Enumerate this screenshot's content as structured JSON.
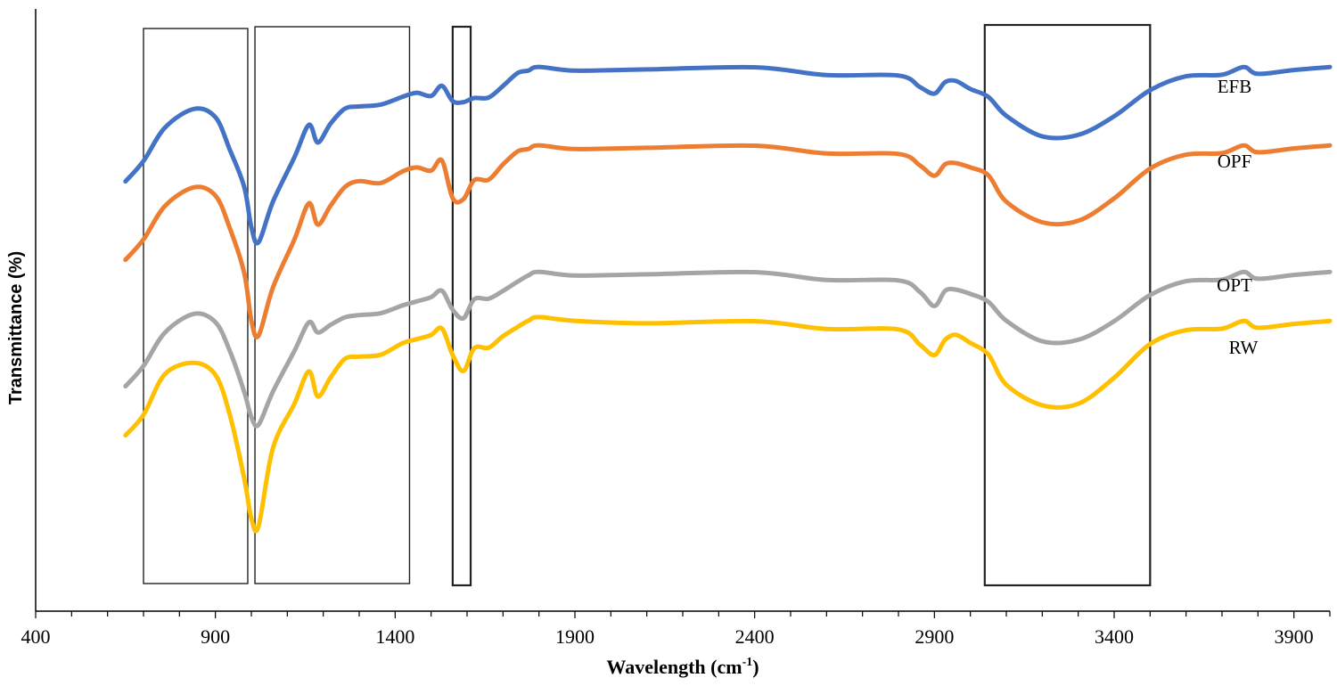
{
  "chart_data": {
    "type": "line",
    "title": "",
    "xlabel": "Wavelength (cm",
    "xlabel_sup": "-1",
    "xlabel_close": ")",
    "ylabel": "Transmittance (%)",
    "xlim": [
      400,
      4000
    ],
    "x_ticks": [
      400,
      900,
      1400,
      1900,
      2400,
      2900,
      3400,
      3900
    ],
    "x_tick_labels": [
      "400",
      "900",
      "1400",
      "1900",
      "2400",
      "2900",
      "3400",
      "3900"
    ],
    "y_ticks_shown": false,
    "grid": false,
    "legend": "inline labels at right",
    "highlight_ranges": [
      [
        700,
        990
      ],
      [
        1010,
        1440
      ],
      [
        1560,
        1610
      ],
      [
        3040,
        3500
      ]
    ],
    "series": [
      {
        "name": "EFB",
        "color": "#4472C4",
        "x": [
          650,
          700,
          760,
          840,
          900,
          940,
          980,
          1000,
          1020,
          1060,
          1120,
          1160,
          1185,
          1220,
          1260,
          1300,
          1360,
          1420,
          1460,
          1500,
          1530,
          1560,
          1590,
          1620,
          1660,
          1700,
          1740,
          1770,
          1800,
          1900,
          2100,
          2400,
          2600,
          2800,
          2860,
          2900,
          2930,
          2960,
          3000,
          3050,
          3100,
          3200,
          3300,
          3400,
          3500,
          3600,
          3700,
          3760,
          3800,
          3900,
          4000
        ],
        "y": [
          -18,
          -13,
          -3,
          1,
          -1,
          -9,
          -20,
          -30,
          -34,
          -24,
          -11,
          -3,
          -8,
          -2,
          1,
          2,
          3,
          4,
          6,
          5,
          7,
          4,
          3,
          4,
          5,
          7,
          11,
          12,
          12,
          12,
          12,
          12,
          11,
          10,
          7,
          6,
          8,
          9,
          7,
          4,
          0,
          -6,
          -6,
          0,
          6,
          10,
          11,
          12,
          11,
          12,
          12
        ]
      },
      {
        "name": "OPF",
        "color": "#ED7D31",
        "x": [
          650,
          700,
          760,
          840,
          900,
          940,
          980,
          1000,
          1020,
          1060,
          1120,
          1160,
          1185,
          1220,
          1260,
          1300,
          1360,
          1420,
          1460,
          1500,
          1530,
          1560,
          1590,
          1620,
          1660,
          1700,
          1740,
          1770,
          1800,
          1900,
          2100,
          2400,
          2600,
          2800,
          2860,
          2900,
          2930,
          2960,
          3000,
          3050,
          3100,
          3200,
          3300,
          3400,
          3500,
          3600,
          3700,
          3760,
          3800,
          3900,
          4000
        ],
        "y": [
          -18,
          -13,
          -3,
          1,
          -1,
          -9,
          -22,
          -34,
          -38,
          -26,
          -12,
          -3,
          -9,
          -3,
          1,
          3,
          3,
          5,
          7,
          6,
          8,
          -1,
          -2,
          3,
          4,
          7,
          11,
          12,
          12,
          12,
          12,
          12,
          11,
          10,
          7,
          5,
          7,
          8,
          7,
          4,
          -2,
          -8,
          -8,
          -1,
          6,
          10,
          11,
          12,
          11,
          12,
          12
        ]
      },
      {
        "name": "OPT",
        "color": "#A5A5A5",
        "x": [
          650,
          700,
          760,
          840,
          900,
          940,
          980,
          1000,
          1020,
          1060,
          1120,
          1160,
          1185,
          1220,
          1260,
          1300,
          1360,
          1420,
          1460,
          1500,
          1530,
          1560,
          1590,
          1620,
          1660,
          1700,
          1740,
          1770,
          1800,
          1900,
          2100,
          2400,
          2600,
          2800,
          2860,
          2900,
          2930,
          2960,
          3000,
          3050,
          3100,
          3200,
          3300,
          3400,
          3500,
          3600,
          3700,
          3760,
          3800,
          3900,
          4000
        ],
        "y": [
          -18,
          -13,
          -3,
          1,
          -1,
          -8,
          -20,
          -26,
          -28,
          -20,
          -8,
          -1,
          -4,
          -1,
          0,
          1,
          2,
          3,
          5,
          6,
          7,
          3,
          0,
          5,
          6,
          7,
          10,
          12,
          12,
          12,
          12,
          12,
          11,
          10,
          7,
          4,
          7,
          8,
          7,
          4,
          0,
          -6,
          -6,
          0,
          6,
          10,
          11,
          12,
          11,
          12,
          12
        ]
      },
      {
        "name": "RW",
        "color": "#FFC000",
        "x": [
          650,
          700,
          760,
          840,
          900,
          940,
          980,
          1000,
          1020,
          1060,
          1120,
          1160,
          1185,
          1220,
          1260,
          1300,
          1360,
          1420,
          1460,
          1500,
          1530,
          1560,
          1590,
          1620,
          1660,
          1700,
          1740,
          1770,
          1800,
          1900,
          2100,
          2400,
          2600,
          2800,
          2860,
          2900,
          2930,
          2960,
          3000,
          3050,
          3100,
          3200,
          3300,
          3400,
          3500,
          3600,
          3700,
          3760,
          3800,
          3900,
          4000
        ],
        "y": [
          -18,
          -13,
          -1,
          1,
          -2,
          -12,
          -30,
          -40,
          -42,
          -22,
          -9,
          -1,
          -8,
          -2,
          2,
          3,
          4,
          6,
          8,
          9,
          10,
          4,
          -1,
          5,
          6,
          8,
          11,
          13,
          13,
          13,
          12,
          12,
          11,
          10,
          6,
          4,
          7,
          9,
          7,
          3,
          -4,
          -10,
          -10,
          -2,
          6,
          10,
          11,
          12,
          11,
          12,
          12
        ]
      }
    ]
  }
}
